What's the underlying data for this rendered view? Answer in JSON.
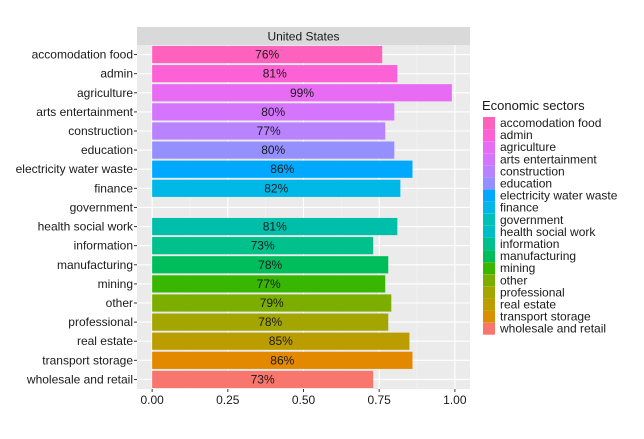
{
  "chart_data": {
    "type": "bar",
    "orientation": "horizontal",
    "facet_title": "United States",
    "xlim": [
      -0.05,
      1.05
    ],
    "x_ticks": [
      0,
      0.25,
      0.5,
      0.75,
      1
    ],
    "x_tick_labels": [
      "0.00",
      "0.25",
      "0.50",
      "0.75",
      "1.00"
    ],
    "grid": true,
    "legend_position": "right",
    "legend_title": "Economic sectors",
    "categories": [
      "accomodation food",
      "admin",
      "agriculture",
      "arts entertainment",
      "construction",
      "education",
      "electricity water waste",
      "finance",
      "government",
      "health social work",
      "information",
      "manufacturing",
      "mining",
      "other",
      "professional",
      "real estate",
      "transport storage",
      "wholesale and retail"
    ],
    "values": [
      0.76,
      0.81,
      0.99,
      0.8,
      0.77,
      0.8,
      0.86,
      0.82,
      null,
      0.81,
      0.73,
      0.78,
      0.77,
      0.79,
      0.78,
      0.85,
      0.86,
      0.73
    ],
    "value_labels": [
      "76%",
      "81%",
      "99%",
      "80%",
      "77%",
      "80%",
      "86%",
      "82%",
      "",
      "81%",
      "73%",
      "78%",
      "77%",
      "79%",
      "78%",
      "85%",
      "86%",
      "73%"
    ],
    "colors": [
      "#FF62BC",
      "#FC61D5",
      "#E76BF3",
      "#D575FE",
      "#B983FF",
      "#9590FF",
      "#00B0F6",
      "#00BAE0",
      "#00C0B8",
      "#00BFC4",
      "#00C08B",
      "#00BD5C",
      "#39B600",
      "#7CAE00",
      "#A3A500",
      "#BB9D00",
      "#D89000",
      "#E68613"
    ],
    "legend_labels": [
      "accomodation food",
      "admin",
      "agriculture",
      "arts entertainment",
      "construction",
      "education",
      "electricity water waste",
      "finance",
      "government",
      "health social work",
      "information",
      "manufacturing",
      "mining",
      "other",
      "professional",
      "real estate",
      "transport storage",
      "wholesale and retail"
    ],
    "legend_colors": [
      "#FF62BC",
      "#FC61D5",
      "#E76BF3",
      "#D575FE",
      "#B983FF",
      "#9590FF",
      "#00A9FF",
      "#00B8E7",
      "#00C0B8",
      "#00BFC4",
      "#00C08B",
      "#00BD5C",
      "#39B600",
      "#7CAE00",
      "#A3A500",
      "#BB9D00",
      "#D89000",
      "#F8766D"
    ],
    "bar_colors": [
      "#FF62BC",
      "#FC61D5",
      "#E76BF3",
      "#D575FE",
      "#B983FF",
      "#9590FF",
      "#00A9FF",
      "#00B8E7",
      "#00C0B8",
      "#00BFAA",
      "#00C08B",
      "#00BD5C",
      "#39B600",
      "#7CAE00",
      "#A3A500",
      "#BB9D00",
      "#E38900",
      "#F8766D"
    ],
    "colors_theme": {
      "panel_bg": "#EBEBEB",
      "strip_bg": "#D9D9D9",
      "grid_major": "#FFFFFF",
      "grid_minor": "#F5F5F5",
      "text": "#1A1A1A"
    }
  }
}
